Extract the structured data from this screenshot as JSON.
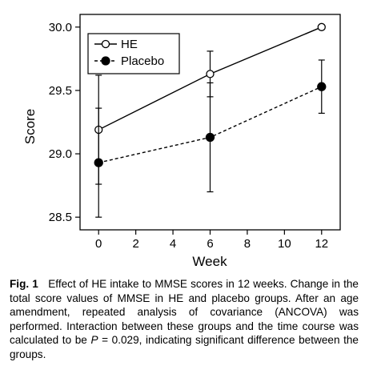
{
  "chart_data": {
    "type": "line",
    "x": [
      0,
      6,
      12
    ],
    "xticks": [
      0,
      2,
      4,
      6,
      8,
      10,
      12
    ],
    "yticks": [
      "28.5",
      "29.0",
      "29.5",
      "30.0"
    ],
    "xlim": [
      -1,
      13
    ],
    "ylim": [
      28.4,
      30.1
    ],
    "xlabel": "Week",
    "ylabel": "Score",
    "legend_position": "top-left",
    "grid": false,
    "series": [
      {
        "name": "HE",
        "values": [
          29.19,
          29.63,
          30.0
        ],
        "err_low": [
          28.76,
          29.45,
          30.0
        ],
        "err_high": [
          29.62,
          29.81,
          30.0
        ],
        "marker": "open-circle",
        "line_style": "solid",
        "color": "#000000"
      },
      {
        "name": "Placebo",
        "values": [
          28.93,
          29.13,
          29.53
        ],
        "err_low": [
          28.5,
          28.7,
          29.32
        ],
        "err_high": [
          29.36,
          29.56,
          29.74
        ],
        "marker": "filled-circle",
        "line_style": "dashed",
        "color": "#000000"
      }
    ]
  },
  "caption": {
    "label": "Fig. 1",
    "text_before_p": "Effect of HE intake to MMSE scores in 12 weeks. Change in the total score values of MMSE in HE and placebo groups. After an age amendment, repeated analysis of covariance (ANCOVA) was performed. Interaction between these groups and the time course was calculated to be ",
    "p_symbol": "P",
    "text_after_p": " = 0.029, indicating significant difference between the groups."
  }
}
